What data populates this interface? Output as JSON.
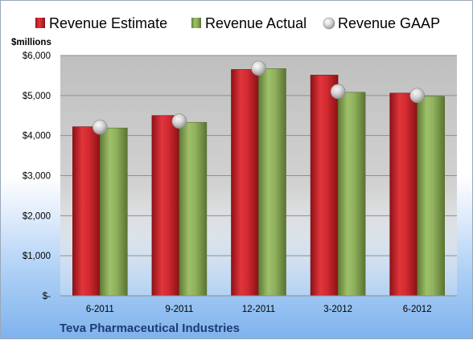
{
  "chart_data": {
    "type": "bar",
    "categories": [
      "6-2011",
      "9-2011",
      "12-2011",
      "3-2012",
      "6-2012"
    ],
    "series": [
      {
        "name": "Revenue Estimate",
        "kind": "bar",
        "color": "#c0262c",
        "values": [
          4220,
          4500,
          5650,
          5510,
          5060
        ]
      },
      {
        "name": "Revenue Actual",
        "kind": "bar",
        "color": "#8aa858",
        "values": [
          4190,
          4330,
          5670,
          5080,
          4980
        ]
      },
      {
        "name": "Revenue GAAP",
        "kind": "marker",
        "color": "#c8c8c8",
        "values": [
          4210,
          4360,
          5680,
          5100,
          5000
        ]
      }
    ],
    "ylabel": "$millions",
    "ylim": [
      0,
      6000
    ],
    "yticks": [
      0,
      1000,
      2000,
      3000,
      4000,
      5000,
      6000
    ],
    "ytick_labels": [
      "$-",
      "$1,000",
      "$2,000",
      "$3,000",
      "$4,000",
      "$5,000",
      "$6,000"
    ],
    "grid": true,
    "legend_position": "top",
    "caption": "Teva Pharmaceutical Industries"
  }
}
